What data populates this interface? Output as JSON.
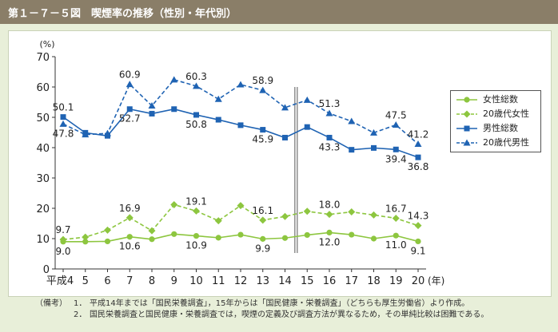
{
  "figure": {
    "title": "第１－７－５図　喫煙率の推移（性別・年代別）"
  },
  "notes": {
    "label": "（備考）",
    "items": [
      {
        "num": "1．",
        "text": "平成14年までは「国民栄養調査」，15年からは「国民健康・栄養調査」（どちらも厚生労働省）より作成。"
      },
      {
        "num": "2．",
        "text": "国民栄養調査と国民健康・栄養調査では，喫煙の定義及び調査方法が異なるため，その単純比較は困難である。"
      }
    ]
  },
  "colors": {
    "female": "#8dc63f",
    "male": "#1f63b3"
  },
  "chart_data": {
    "type": "line",
    "y_unit": "(%)",
    "x_unit": "(年)",
    "x": [
      "平成4",
      "5",
      "6",
      "7",
      "8",
      "9",
      "10",
      "11",
      "12",
      "13",
      "14",
      "15",
      "16",
      "17",
      "18",
      "19",
      "20"
    ],
    "ylim": [
      0,
      70
    ],
    "yticks": [
      0,
      10,
      20,
      30,
      40,
      50,
      60,
      70
    ],
    "grid": false,
    "legend_position": "top-right",
    "separator_between": [
      "14",
      "15"
    ],
    "series": [
      {
        "name": "女性総数",
        "style": "solid",
        "marker": "circle",
        "color": "#8dc63f",
        "values": [
          9.0,
          9.0,
          9.1,
          10.6,
          9.8,
          11.5,
          10.9,
          10.3,
          11.3,
          9.9,
          10.2,
          11.2,
          12.0,
          11.3,
          10.0,
          11.0,
          9.1
        ],
        "labels": [
          {
            "index": 0,
            "text": "9.0",
            "pos": "below"
          },
          {
            "index": 3,
            "text": "10.6",
            "pos": "below"
          },
          {
            "index": 6,
            "text": "10.9",
            "pos": "below"
          },
          {
            "index": 9,
            "text": "9.9",
            "pos": "below"
          },
          {
            "index": 12,
            "text": "12.0",
            "pos": "below"
          },
          {
            "index": 15,
            "text": "11.0",
            "pos": "below"
          },
          {
            "index": 16,
            "text": "9.1",
            "pos": "below"
          }
        ]
      },
      {
        "name": "20歳代女性",
        "style": "dashed",
        "marker": "diamond",
        "color": "#8dc63f",
        "values": [
          9.7,
          10.5,
          12.8,
          16.9,
          12.6,
          21.2,
          19.1,
          15.9,
          20.9,
          16.1,
          17.3,
          19.0,
          18.0,
          18.8,
          17.8,
          16.7,
          14.3
        ],
        "labels": [
          {
            "index": 0,
            "text": "9.7",
            "pos": "above"
          },
          {
            "index": 3,
            "text": "16.9",
            "pos": "above"
          },
          {
            "index": 6,
            "text": "19.1",
            "pos": "above"
          },
          {
            "index": 9,
            "text": "16.1",
            "pos": "above"
          },
          {
            "index": 12,
            "text": "18.0",
            "pos": "above"
          },
          {
            "index": 15,
            "text": "16.7",
            "pos": "above"
          },
          {
            "index": 16,
            "text": "14.3",
            "pos": "above"
          }
        ]
      },
      {
        "name": "男性総数",
        "style": "solid",
        "marker": "square",
        "color": "#1f63b3",
        "values": [
          50.1,
          44.9,
          43.9,
          52.7,
          51.2,
          52.7,
          50.8,
          49.2,
          47.4,
          45.9,
          43.3,
          46.8,
          43.3,
          39.3,
          39.9,
          39.4,
          36.8
        ],
        "labels": [
          {
            "index": 0,
            "text": "50.1",
            "pos": "above"
          },
          {
            "index": 3,
            "text": "52.7",
            "pos": "below"
          },
          {
            "index": 6,
            "text": "50.8",
            "pos": "below"
          },
          {
            "index": 9,
            "text": "45.9",
            "pos": "below"
          },
          {
            "index": 12,
            "text": "43.3",
            "pos": "below"
          },
          {
            "index": 15,
            "text": "39.4",
            "pos": "below"
          },
          {
            "index": 16,
            "text": "36.8",
            "pos": "below"
          }
        ]
      },
      {
        "name": "20歳代男性",
        "style": "dashed",
        "marker": "triangle",
        "color": "#1f63b3",
        "values": [
          47.8,
          44.3,
          44.7,
          60.9,
          53.8,
          62.4,
          60.3,
          56.0,
          60.8,
          58.9,
          53.2,
          55.7,
          51.3,
          48.7,
          44.9,
          47.5,
          41.2
        ],
        "labels": [
          {
            "index": 0,
            "text": "47.8",
            "pos": "below"
          },
          {
            "index": 3,
            "text": "60.9",
            "pos": "above"
          },
          {
            "index": 6,
            "text": "60.3",
            "pos": "above"
          },
          {
            "index": 9,
            "text": "58.9",
            "pos": "above"
          },
          {
            "index": 12,
            "text": "51.3",
            "pos": "above"
          },
          {
            "index": 15,
            "text": "47.5",
            "pos": "above"
          },
          {
            "index": 16,
            "text": "41.2",
            "pos": "above"
          }
        ]
      }
    ]
  }
}
